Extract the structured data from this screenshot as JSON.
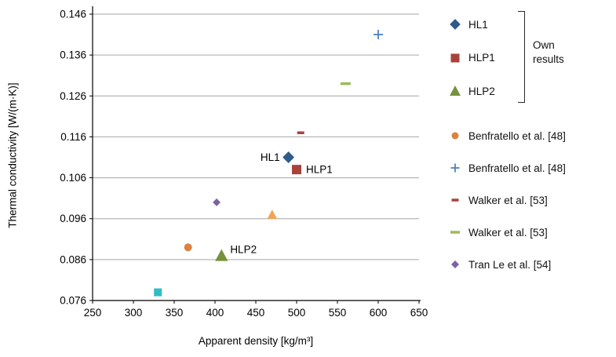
{
  "chart_data": {
    "type": "scatter",
    "title": "",
    "xlabel": "Apparent density [kg/m³]",
    "ylabel": "Thermal conductivity [W/(m·K)]",
    "xlim": [
      250,
      650
    ],
    "ylim": [
      0.076,
      0.146
    ],
    "xticks": [
      250,
      300,
      350,
      400,
      450,
      500,
      550,
      600,
      650
    ],
    "yticks": [
      0.076,
      0.086,
      0.096,
      0.106,
      0.116,
      0.126,
      0.136,
      0.146
    ],
    "ytick_labels": [
      "0.076",
      "0.086",
      "0.096",
      "0.106",
      "0.116",
      "0.126",
      "0.136",
      "0.146"
    ],
    "grid": "horizontal",
    "gridline_color": "#a6a6a6",
    "axis_color": "#000000",
    "legend_position": "right",
    "series": [
      {
        "name": "HL1",
        "marker": "diamond",
        "color": "#2E5C8A",
        "size": 12,
        "points": [
          [
            490,
            0.111
          ]
        ],
        "point_label": {
          "text": "HL1",
          "position": "left"
        }
      },
      {
        "name": "HLP1",
        "marker": "square",
        "color": "#A8423A",
        "size": 12,
        "points": [
          [
            500,
            0.108
          ]
        ],
        "point_label": {
          "text": "HLP1",
          "position": "right"
        }
      },
      {
        "name": "HLP2",
        "marker": "triangle",
        "color": "#76923C",
        "size": 14,
        "points": [
          [
            408,
            0.087
          ]
        ],
        "point_label": {
          "text": "HLP2",
          "position": "right-up"
        }
      },
      {
        "name": "Benfratello et al. [48]",
        "marker": "circle",
        "color": "#DB8240",
        "size": 10,
        "points": [
          [
            367,
            0.089
          ]
        ]
      },
      {
        "name": "Benfratello et al. [48]",
        "marker": "plus",
        "color": "#4F81BD",
        "size": 12,
        "points": [
          [
            600,
            0.141
          ]
        ]
      },
      {
        "name": "Walker et al. [53]",
        "marker": "dash",
        "color": "#A5433C",
        "size": 9,
        "points": [
          [
            505,
            0.117
          ]
        ]
      },
      {
        "name": "Walker et al. [53]",
        "marker": "dash",
        "color": "#9BBB59",
        "size": 13,
        "points": [
          [
            560,
            0.129
          ]
        ]
      },
      {
        "name": "Tran Le et al. [54]",
        "marker": "diamond",
        "color": "#7C61A5",
        "size": 8,
        "points": [
          [
            402,
            0.1
          ]
        ]
      },
      {
        "name": "",
        "marker": "square",
        "color": "#2FBCC7",
        "size": 10,
        "points": [
          [
            330,
            0.078
          ]
        ],
        "in_legend": false
      },
      {
        "name": "",
        "marker": "triangle",
        "color": "#F2A459",
        "size": 11,
        "points": [
          [
            470,
            0.097
          ]
        ],
        "in_legend": false
      }
    ]
  },
  "legend": {
    "group_label": "Own results",
    "items": [
      {
        "label": "HL1",
        "marker": "diamond",
        "color": "#2E5C8A",
        "size": 11,
        "group": "own"
      },
      {
        "label": "HLP1",
        "marker": "square",
        "color": "#A8423A",
        "size": 11,
        "group": "own"
      },
      {
        "label": "HLP2",
        "marker": "triangle",
        "color": "#76923C",
        "size": 12,
        "group": "own"
      },
      {
        "label": "Benfratello et al. [48]",
        "marker": "circle",
        "color": "#DB8240",
        "size": 9
      },
      {
        "label": "Benfratello et al.  [48]",
        "marker": "plus",
        "color": "#4F81BD",
        "size": 11
      },
      {
        "label": "Walker et al. [53]",
        "marker": "dash",
        "color": "#A5433C",
        "size": 9
      },
      {
        "label": "Walker et al.  [53]",
        "marker": "dash",
        "color": "#9BBB59",
        "size": 12
      },
      {
        "label": "Tran Le et al. [54]",
        "marker": "diamond",
        "color": "#7C61A5",
        "size": 8
      }
    ]
  }
}
